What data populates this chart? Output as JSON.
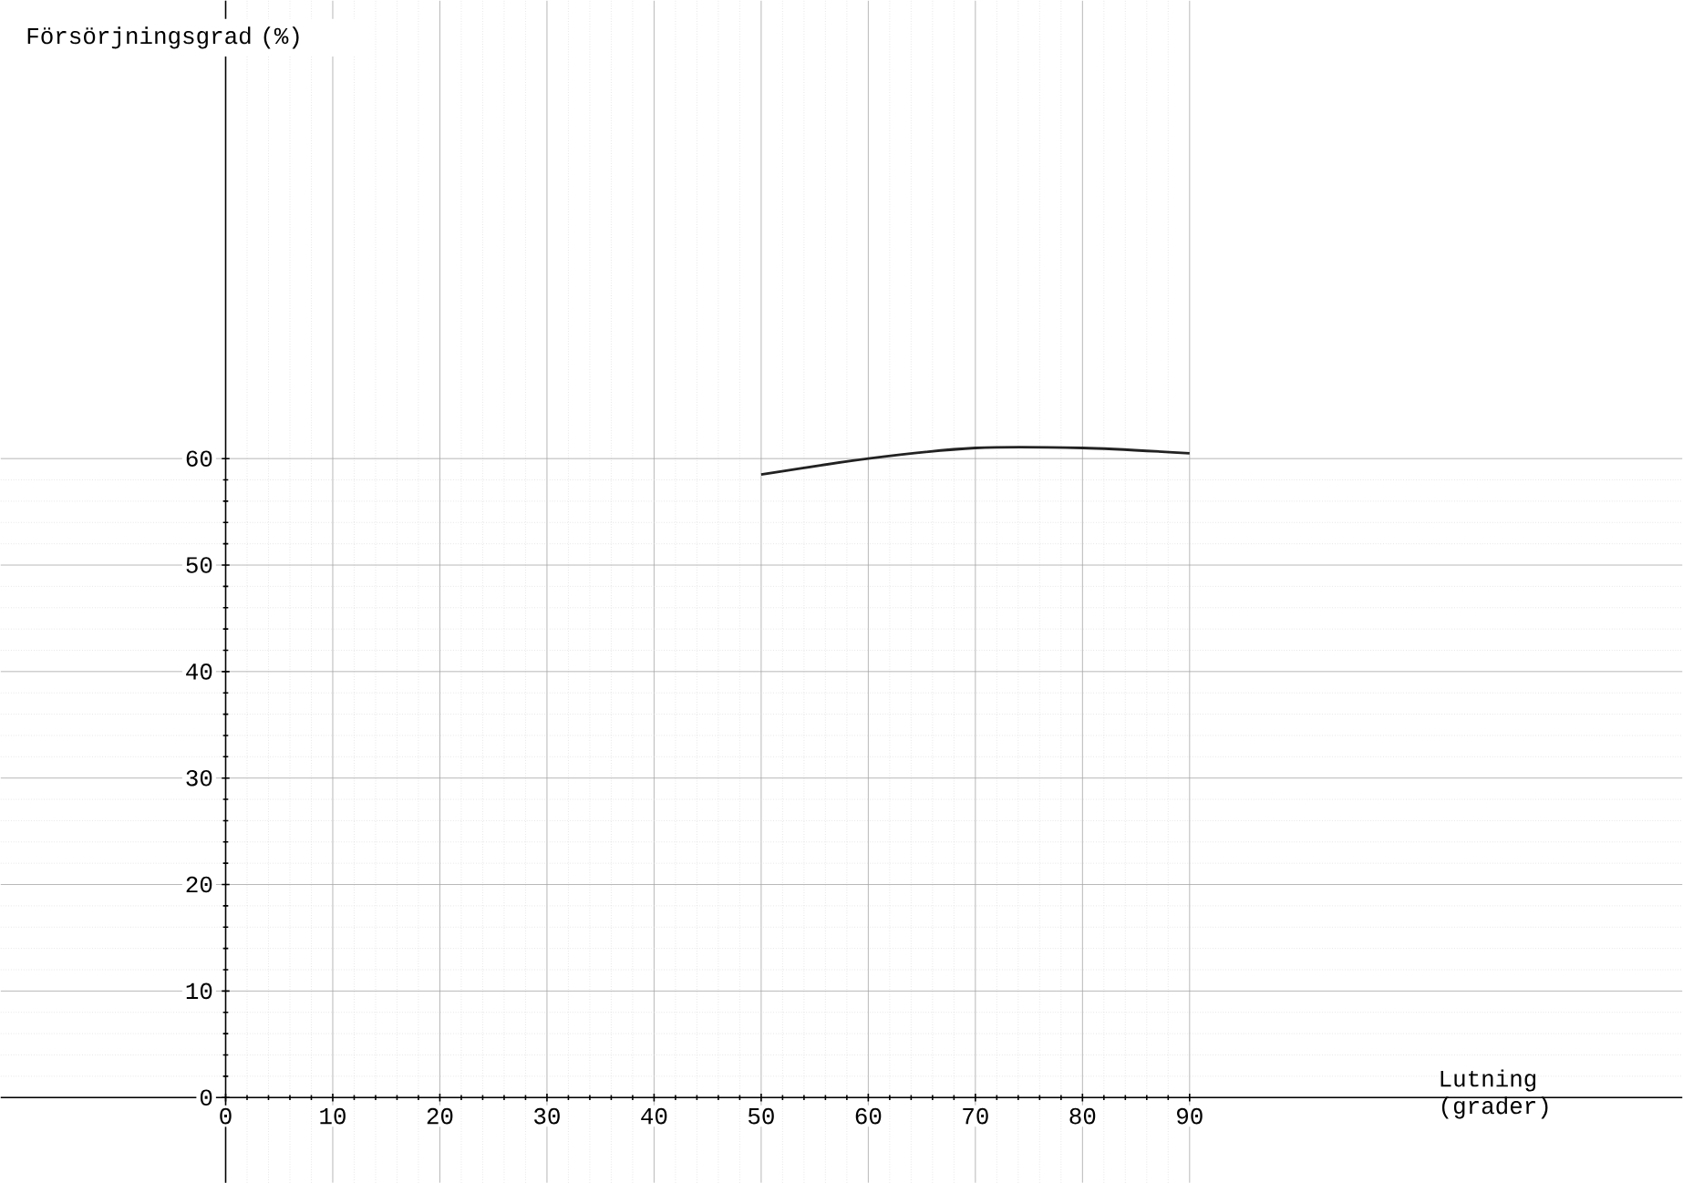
{
  "chart_data": {
    "type": "line",
    "xlabel": "Lutning (grader)",
    "ylabel": "Försörjningsgrad (%)",
    "x": [
      50,
      60,
      70,
      80,
      90
    ],
    "series": [
      {
        "color": "#222222",
        "values": [
          58.5,
          60,
          61,
          61,
          60.5
        ]
      }
    ],
    "xlim": [
      -21,
      136
    ],
    "ylim": [
      -8,
      103
    ],
    "xticks": [
      0,
      10,
      20,
      30,
      40,
      50,
      60,
      70,
      80,
      90
    ],
    "yticks": [
      0,
      10,
      20,
      30,
      40,
      50,
      60
    ],
    "grid": true,
    "marker": "none",
    "line_style": "solid"
  }
}
